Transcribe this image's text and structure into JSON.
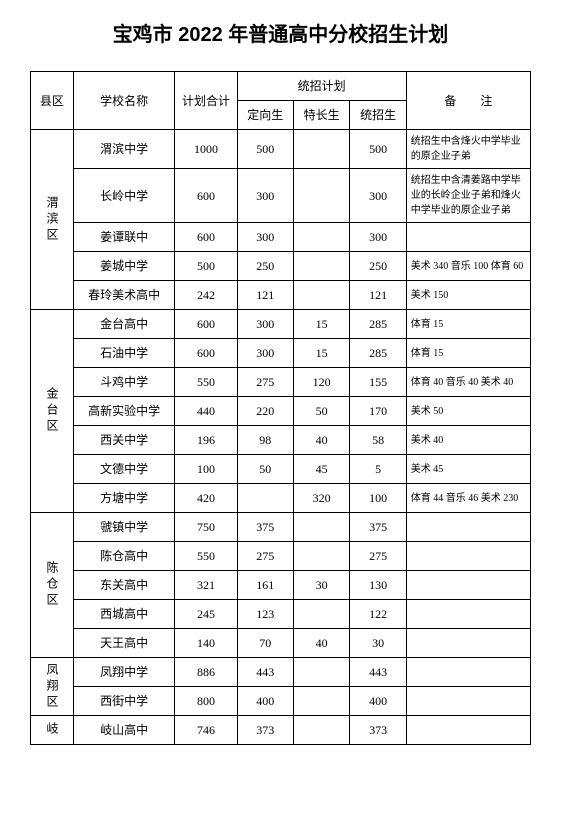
{
  "title": "宝鸡市 2022 年普通高中分校招生计划",
  "headers": {
    "district": "县区",
    "school": "学校名称",
    "total": "计划合计",
    "tz_plan": "统招计划",
    "dx": "定向生",
    "tc": "特长生",
    "tz": "统招生",
    "remark": "备　　注"
  },
  "districts": [
    {
      "name": "渭滨区",
      "rows": [
        {
          "school": "渭滨中学",
          "total": "1000",
          "dx": "500",
          "tc": "",
          "tz": "500",
          "remark": "统招生中含烽火中学毕业的原企业子弟",
          "tall": true
        },
        {
          "school": "长岭中学",
          "total": "600",
          "dx": "300",
          "tc": "",
          "tz": "300",
          "remark": "统招生中含清姜路中学毕业的长岭企业子弟和烽火中学毕业的原企业子弟",
          "tall": true
        },
        {
          "school": "姜谭联中",
          "total": "600",
          "dx": "300",
          "tc": "",
          "tz": "300",
          "remark": ""
        },
        {
          "school": "姜城中学",
          "total": "500",
          "dx": "250",
          "tc": "",
          "tz": "250",
          "remark": "美术 340 音乐 100 体育 60"
        },
        {
          "school": "春玲美术高中",
          "total": "242",
          "dx": "121",
          "tc": "",
          "tz": "121",
          "remark": "美术 150"
        }
      ]
    },
    {
      "name": "金台区",
      "rows": [
        {
          "school": "金台高中",
          "total": "600",
          "dx": "300",
          "tc": "15",
          "tz": "285",
          "remark": "体育 15"
        },
        {
          "school": "石油中学",
          "total": "600",
          "dx": "300",
          "tc": "15",
          "tz": "285",
          "remark": "体育 15"
        },
        {
          "school": "斗鸡中学",
          "total": "550",
          "dx": "275",
          "tc": "120",
          "tz": "155",
          "remark": "体育 40 音乐 40 美术 40"
        },
        {
          "school": "高新实验中学",
          "total": "440",
          "dx": "220",
          "tc": "50",
          "tz": "170",
          "remark": "美术 50"
        },
        {
          "school": "西关中学",
          "total": "196",
          "dx": "98",
          "tc": "40",
          "tz": "58",
          "remark": "美术 40"
        },
        {
          "school": "文德中学",
          "total": "100",
          "dx": "50",
          "tc": "45",
          "tz": "5",
          "remark": "美术 45"
        },
        {
          "school": "方塘中学",
          "total": "420",
          "dx": "",
          "tc": "320",
          "tz": "100",
          "remark": "体育 44 音乐 46 美术 230"
        }
      ]
    },
    {
      "name": "陈仓区",
      "rows": [
        {
          "school": "虢镇中学",
          "total": "750",
          "dx": "375",
          "tc": "",
          "tz": "375",
          "remark": ""
        },
        {
          "school": "陈仓高中",
          "total": "550",
          "dx": "275",
          "tc": "",
          "tz": "275",
          "remark": ""
        },
        {
          "school": "东关高中",
          "total": "321",
          "dx": "161",
          "tc": "30",
          "tz": "130",
          "remark": ""
        },
        {
          "school": "西城高中",
          "total": "245",
          "dx": "123",
          "tc": "",
          "tz": "122",
          "remark": ""
        },
        {
          "school": "天王高中",
          "total": "140",
          "dx": "70",
          "tc": "40",
          "tz": "30",
          "remark": ""
        }
      ]
    },
    {
      "name": "凤翔区",
      "rows": [
        {
          "school": "凤翔中学",
          "total": "886",
          "dx": "443",
          "tc": "",
          "tz": "443",
          "remark": ""
        },
        {
          "school": "西街中学",
          "total": "800",
          "dx": "400",
          "tc": "",
          "tz": "400",
          "remark": ""
        }
      ]
    },
    {
      "name": "岐",
      "rows": [
        {
          "school": "岐山高中",
          "total": "746",
          "dx": "373",
          "tc": "",
          "tz": "373",
          "remark": ""
        }
      ]
    }
  ]
}
